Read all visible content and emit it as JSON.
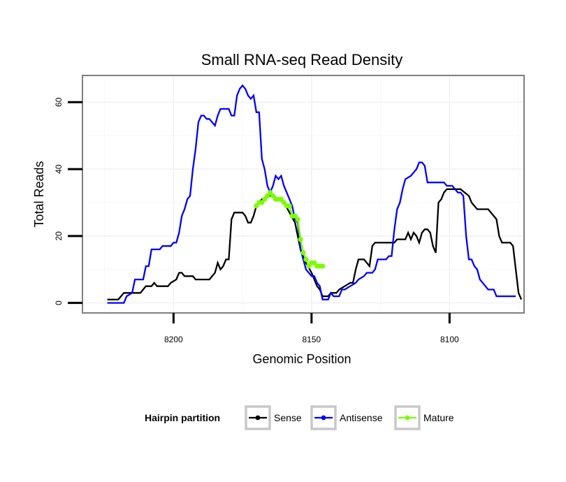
{
  "chart_data": {
    "type": "line",
    "title": "Small RNA-seq Read Density",
    "xlabel": "Genomic Position",
    "ylabel": "Total Reads",
    "xlim": [
      8233,
      8073
    ],
    "ylim": [
      -3,
      68
    ],
    "x_reversed": true,
    "xticks": [
      8200,
      8150,
      8100
    ],
    "xtick_labels": [
      "8200",
      "8150",
      "8100"
    ],
    "yticks": [
      0,
      20,
      40,
      60
    ],
    "ytick_labels": [
      "0",
      "20",
      "40",
      "60"
    ],
    "grid": true,
    "legend": {
      "title": "Hairpin partition",
      "position": "bottom",
      "entries": [
        "Sense",
        "Antisense",
        "Mature"
      ]
    },
    "series": [
      {
        "name": "Sense",
        "color": "#000000",
        "markers": false,
        "points": [
          [
            8224,
            1
          ],
          [
            8220,
            1
          ],
          [
            8218,
            3
          ],
          [
            8212,
            3
          ],
          [
            8210,
            5
          ],
          [
            8208,
            5
          ],
          [
            8207,
            6
          ],
          [
            8206,
            5
          ],
          [
            8202,
            5
          ],
          [
            8201,
            6
          ],
          [
            8199,
            7
          ],
          [
            8198,
            9
          ],
          [
            8197,
            9
          ],
          [
            8196,
            8
          ],
          [
            8193,
            8
          ],
          [
            8192,
            7
          ],
          [
            8187,
            7
          ],
          [
            8185,
            9
          ],
          [
            8184,
            12
          ],
          [
            8183,
            10
          ],
          [
            8182,
            11
          ],
          [
            8181,
            13
          ],
          [
            8180,
            13
          ],
          [
            8179,
            25
          ],
          [
            8178,
            27
          ],
          [
            8175,
            27
          ],
          [
            8174,
            26
          ],
          [
            8173,
            24
          ],
          [
            8172,
            24
          ],
          [
            8171,
            26
          ],
          [
            8170,
            29
          ],
          [
            8168,
            31
          ],
          [
            8166,
            32
          ],
          [
            8164,
            32
          ],
          [
            8162,
            31
          ],
          [
            8160,
            30
          ],
          [
            8158,
            27
          ],
          [
            8156,
            24
          ],
          [
            8155,
            20
          ],
          [
            8154,
            16
          ],
          [
            8152,
            12
          ],
          [
            8150,
            9
          ],
          [
            8149,
            7
          ],
          [
            8148,
            5
          ],
          [
            8147,
            4
          ],
          [
            8146,
            2
          ],
          [
            8144,
            2
          ],
          [
            8143,
            3
          ],
          [
            8141,
            3
          ],
          [
            8140,
            4
          ],
          [
            8138,
            5
          ],
          [
            8136,
            6
          ],
          [
            8135,
            6
          ],
          [
            8134,
            10
          ],
          [
            8133,
            13
          ],
          [
            8131,
            13
          ],
          [
            8130,
            12
          ],
          [
            8129,
            11
          ],
          [
            8128,
            17
          ],
          [
            8127,
            18
          ],
          [
            8120,
            18
          ],
          [
            8119,
            19
          ],
          [
            8116,
            19
          ],
          [
            8115,
            21
          ],
          [
            8114,
            19
          ],
          [
            8113,
            21
          ],
          [
            8112,
            20
          ],
          [
            8111,
            18
          ],
          [
            8110,
            21
          ],
          [
            8109,
            22
          ],
          [
            8108,
            22
          ],
          [
            8107,
            21
          ],
          [
            8106,
            17
          ],
          [
            8105,
            15
          ],
          [
            8104,
            30
          ],
          [
            8103,
            31
          ],
          [
            8102,
            33
          ],
          [
            8101,
            34
          ],
          [
            8096,
            34
          ],
          [
            8093,
            32
          ],
          [
            8092,
            30
          ],
          [
            8091,
            29
          ],
          [
            8090,
            28
          ],
          [
            8086,
            28
          ],
          [
            8084,
            26
          ],
          [
            8083,
            25
          ],
          [
            8082,
            20
          ],
          [
            8081,
            18
          ],
          [
            8078,
            18
          ],
          [
            8077,
            17
          ],
          [
            8076,
            10
          ],
          [
            8075,
            3
          ],
          [
            8074,
            1
          ]
        ]
      },
      {
        "name": "Antisense",
        "color": "#0000ff",
        "markers": false,
        "points": [
          [
            8224,
            0
          ],
          [
            8218,
            0
          ],
          [
            8217,
            2
          ],
          [
            8215,
            3
          ],
          [
            8214,
            7
          ],
          [
            8211,
            7
          ],
          [
            8210,
            11
          ],
          [
            8209,
            11
          ],
          [
            8208,
            16
          ],
          [
            8205,
            16
          ],
          [
            8204,
            17
          ],
          [
            8201,
            17
          ],
          [
            8200,
            18
          ],
          [
            8199,
            18
          ],
          [
            8198,
            21
          ],
          [
            8197,
            26
          ],
          [
            8196,
            28
          ],
          [
            8195,
            31
          ],
          [
            8194,
            32
          ],
          [
            8193,
            40
          ],
          [
            8192,
            46
          ],
          [
            8191,
            54
          ],
          [
            8190,
            56
          ],
          [
            8189,
            56
          ],
          [
            8188,
            55
          ],
          [
            8187,
            55
          ],
          [
            8186,
            54
          ],
          [
            8185,
            53
          ],
          [
            8184,
            56
          ],
          [
            8183,
            58
          ],
          [
            8180,
            58
          ],
          [
            8179,
            56
          ],
          [
            8178,
            56
          ],
          [
            8177,
            62
          ],
          [
            8176,
            64
          ],
          [
            8175,
            65
          ],
          [
            8174,
            64
          ],
          [
            8173,
            62
          ],
          [
            8172,
            61
          ],
          [
            8171,
            62
          ],
          [
            8170,
            57
          ],
          [
            8169,
            57
          ],
          [
            8168,
            43
          ],
          [
            8167,
            40
          ],
          [
            8166,
            35
          ],
          [
            8165,
            33
          ],
          [
            8164,
            35
          ],
          [
            8163,
            38
          ],
          [
            8162,
            37
          ],
          [
            8161,
            38
          ],
          [
            8160,
            35
          ],
          [
            8159,
            33
          ],
          [
            8158,
            31
          ],
          [
            8157,
            29
          ],
          [
            8156,
            25
          ],
          [
            8155,
            24
          ],
          [
            8154,
            16
          ],
          [
            8153,
            13
          ],
          [
            8152,
            10
          ],
          [
            8151,
            9
          ],
          [
            8150,
            8
          ],
          [
            8149,
            8
          ],
          [
            8148,
            6
          ],
          [
            8147,
            5
          ],
          [
            8146,
            1
          ],
          [
            8144,
            1
          ],
          [
            8143,
            3
          ],
          [
            8142,
            2
          ],
          [
            8140,
            2
          ],
          [
            8139,
            4
          ],
          [
            8138,
            4
          ],
          [
            8136,
            5
          ],
          [
            8134,
            6
          ],
          [
            8133,
            7
          ],
          [
            8131,
            8
          ],
          [
            8130,
            9
          ],
          [
            8128,
            9
          ],
          [
            8127,
            10
          ],
          [
            8126,
            13
          ],
          [
            8123,
            13
          ],
          [
            8122,
            14
          ],
          [
            8121,
            14
          ],
          [
            8120,
            22
          ],
          [
            8119,
            28
          ],
          [
            8118,
            30
          ],
          [
            8117,
            34
          ],
          [
            8116,
            37
          ],
          [
            8114,
            38
          ],
          [
            8113,
            39
          ],
          [
            8112,
            40
          ],
          [
            8111,
            42
          ],
          [
            8110,
            42
          ],
          [
            8109,
            41
          ],
          [
            8108,
            36
          ],
          [
            8102,
            36
          ],
          [
            8101,
            35
          ],
          [
            8099,
            35
          ],
          [
            8098,
            34
          ],
          [
            8097,
            33
          ],
          [
            8096,
            33
          ],
          [
            8095,
            32
          ],
          [
            8094,
            20
          ],
          [
            8093,
            13
          ],
          [
            8092,
            13
          ],
          [
            8091,
            11
          ],
          [
            8090,
            10
          ],
          [
            8089,
            7
          ],
          [
            8088,
            6
          ],
          [
            8087,
            5
          ],
          [
            8086,
            4
          ],
          [
            8084,
            4
          ],
          [
            8083,
            2
          ],
          [
            8076,
            2
          ]
        ]
      },
      {
        "name": "Mature",
        "color": "#7cfc00",
        "markers": true,
        "points": [
          [
            8170,
            29
          ],
          [
            8169,
            30
          ],
          [
            8168,
            30
          ],
          [
            8167,
            31
          ],
          [
            8166,
            32
          ],
          [
            8165,
            33
          ],
          [
            8164,
            32
          ],
          [
            8163,
            31
          ],
          [
            8162,
            31
          ],
          [
            8161,
            31
          ],
          [
            8160,
            30
          ],
          [
            8159,
            29
          ],
          [
            8158,
            29
          ],
          [
            8157,
            26
          ],
          [
            8156,
            26
          ],
          [
            8155,
            25
          ],
          [
            8154,
            19
          ],
          [
            8153,
            15
          ],
          [
            8152,
            13
          ],
          [
            8151,
            11
          ],
          [
            8150,
            12
          ],
          [
            8149,
            12
          ],
          [
            8148,
            11
          ],
          [
            8147,
            11
          ],
          [
            8146,
            11
          ]
        ]
      }
    ]
  }
}
